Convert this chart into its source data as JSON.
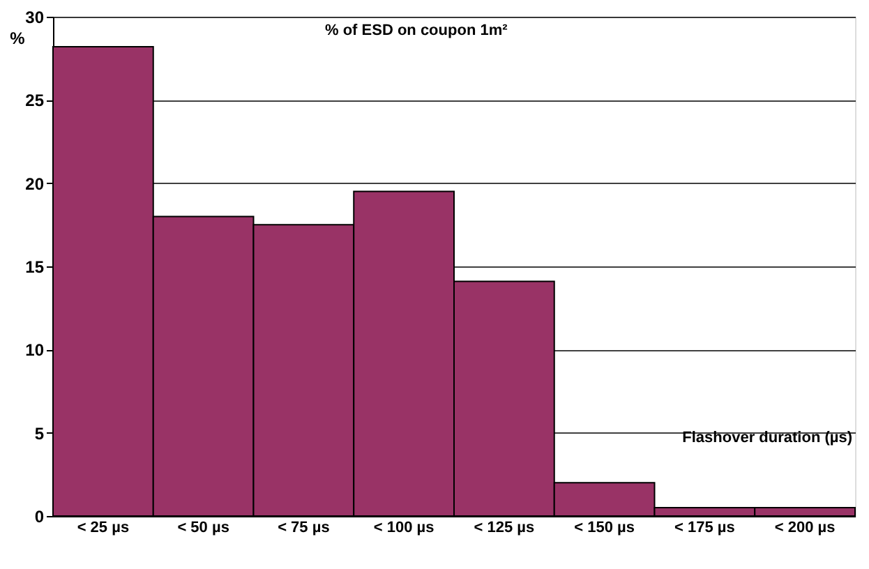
{
  "chart_data": {
    "type": "bar",
    "title": "% of ESD on coupon 1m²",
    "xlabel": "Flashover duration (µs)",
    "ylabel": "%",
    "categories": [
      "< 25 µs",
      "< 50 µs",
      "< 75 µs",
      "< 100 µs",
      "< 125 µs",
      "< 150 µs",
      "< 175 µs",
      "< 200 µs"
    ],
    "values": [
      28.2,
      18,
      17.5,
      19.5,
      14.1,
      2,
      0.5,
      0.5
    ],
    "color": "#993366",
    "ylim": [
      0,
      30
    ],
    "yticks": [
      0,
      5,
      10,
      15,
      20,
      25,
      30
    ],
    "grid": "y"
  }
}
